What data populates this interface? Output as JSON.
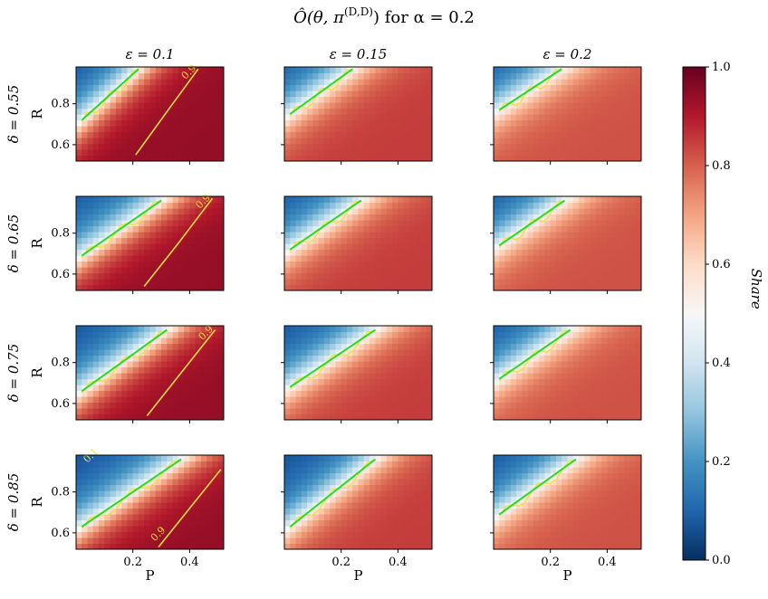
{
  "title": "Ô(θ, π^(D,D)) for α = 0.2",
  "title_parts": {
    "main": "Ô(θ, π",
    "sup": "(D,D)",
    "rest": ") for α = 0.2"
  },
  "colorbar": {
    "label": "Share",
    "ticks": [
      "0.0",
      "0.2",
      "0.4",
      "0.6",
      "0.8",
      "1.0"
    ],
    "tick_values": [
      0.0,
      0.2,
      0.4,
      0.6,
      0.8,
      1.0
    ],
    "cmap": "RdBu_r",
    "range": [
      0,
      1
    ]
  },
  "colors": {
    "threshold_line": "#22dd22",
    "contour": "#f0e040"
  },
  "chart_data": {
    "type": "heatmap",
    "xlabel": "P",
    "ylabel": "R",
    "x_ticks": [
      "0.2",
      "0.4"
    ],
    "x_tick_values": [
      0.2,
      0.4
    ],
    "y_ticks": [
      "0.6",
      "0.8"
    ],
    "y_tick_values": [
      0.6,
      0.8
    ],
    "xlim": [
      0.0,
      0.52
    ],
    "ylim": [
      0.52,
      0.98
    ],
    "columns": [
      {
        "label": "ε = 0.1",
        "epsilon": 0.1
      },
      {
        "label": "ε = 0.15",
        "epsilon": 0.15
      },
      {
        "label": "ε = 0.2",
        "epsilon": 0.2
      }
    ],
    "rows": [
      {
        "label": "δ = 0.55",
        "delta": 0.55
      },
      {
        "label": "δ = 0.65",
        "delta": 0.65
      },
      {
        "label": "δ = 0.75",
        "delta": 0.75
      },
      {
        "label": "δ = 0.85",
        "delta": 0.85
      }
    ],
    "panels": [
      {
        "row": 0,
        "col": 0,
        "max_share": 0.94,
        "line": {
          "p0": 0.02,
          "r0": 0.72,
          "p1": 0.22,
          "r1": 0.97
        },
        "contour_0_9": [
          [
            0.21,
            0.55
          ],
          [
            0.33,
            0.78
          ],
          [
            0.43,
            0.97
          ]
        ],
        "contour_labels": [
          "0.9"
        ]
      },
      {
        "row": 0,
        "col": 1,
        "max_share": 0.85,
        "line": {
          "p0": 0.02,
          "r0": 0.75,
          "p1": 0.24,
          "r1": 0.97
        },
        "contour_labels": []
      },
      {
        "row": 0,
        "col": 2,
        "max_share": 0.82,
        "line": {
          "p0": 0.02,
          "r0": 0.77,
          "p1": 0.24,
          "r1": 0.97
        },
        "contour_labels": []
      },
      {
        "row": 1,
        "col": 0,
        "max_share": 0.94,
        "line": {
          "p0": 0.02,
          "r0": 0.69,
          "p1": 0.3,
          "r1": 0.96
        },
        "contour_0_9": [
          [
            0.24,
            0.54
          ],
          [
            0.36,
            0.75
          ],
          [
            0.48,
            0.97
          ]
        ],
        "contour_labels": [
          "0.9"
        ]
      },
      {
        "row": 1,
        "col": 1,
        "max_share": 0.85,
        "line": {
          "p0": 0.02,
          "r0": 0.72,
          "p1": 0.27,
          "r1": 0.96
        },
        "contour_labels": []
      },
      {
        "row": 1,
        "col": 2,
        "max_share": 0.82,
        "line": {
          "p0": 0.02,
          "r0": 0.74,
          "p1": 0.25,
          "r1": 0.96
        },
        "contour_labels": []
      },
      {
        "row": 2,
        "col": 0,
        "max_share": 0.94,
        "line": {
          "p0": 0.02,
          "r0": 0.66,
          "p1": 0.32,
          "r1": 0.96
        },
        "contour_0_9": [
          [
            0.25,
            0.54
          ],
          [
            0.37,
            0.75
          ],
          [
            0.49,
            0.96
          ]
        ],
        "contour_labels": [
          "0.9"
        ]
      },
      {
        "row": 2,
        "col": 1,
        "max_share": 0.85,
        "line": {
          "p0": 0.02,
          "r0": 0.68,
          "p1": 0.32,
          "r1": 0.96
        },
        "contour_labels": []
      },
      {
        "row": 2,
        "col": 2,
        "max_share": 0.82,
        "line": {
          "p0": 0.02,
          "r0": 0.72,
          "p1": 0.27,
          "r1": 0.96
        },
        "contour_labels": []
      },
      {
        "row": 3,
        "col": 0,
        "max_share": 0.94,
        "line": {
          "p0": 0.02,
          "r0": 0.63,
          "p1": 0.37,
          "r1": 0.96
        },
        "contour_0_9": [
          [
            0.29,
            0.53
          ],
          [
            0.4,
            0.72
          ],
          [
            0.51,
            0.91
          ]
        ],
        "contour_labels": [
          "0.1",
          "0.9"
        ]
      },
      {
        "row": 3,
        "col": 1,
        "max_share": 0.85,
        "line": {
          "p0": 0.02,
          "r0": 0.63,
          "p1": 0.32,
          "r1": 0.96
        },
        "contour_labels": []
      },
      {
        "row": 3,
        "col": 2,
        "max_share": 0.82,
        "line": {
          "p0": 0.02,
          "r0": 0.69,
          "p1": 0.29,
          "r1": 0.96
        },
        "contour_labels": []
      }
    ]
  }
}
